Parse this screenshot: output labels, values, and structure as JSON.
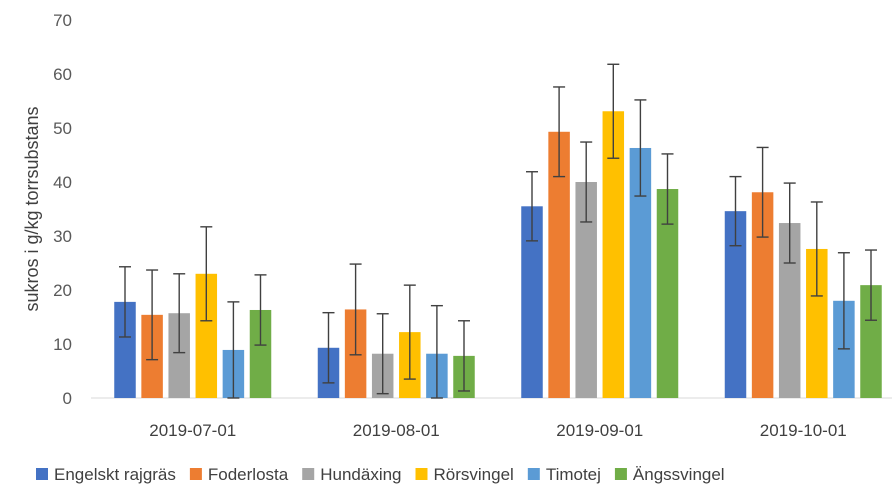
{
  "chart_data": {
    "type": "bar",
    "title": "",
    "xlabel": "",
    "ylabel": "sukros i g/kg torrsubstans",
    "ylim": [
      0,
      70
    ],
    "yticks": [
      0,
      10,
      20,
      30,
      40,
      50,
      60,
      70
    ],
    "grid": false,
    "legend_position": "bottom",
    "error_bars": true,
    "categories": [
      "2019-07-01",
      "2019-08-01",
      "2019-09-01",
      "2019-10-01"
    ],
    "series": [
      {
        "name": "Engelskt rajgräs",
        "color": "#4472C4",
        "values": [
          17.8,
          9.3,
          35.5,
          34.6
        ],
        "errors": [
          6.5,
          6.5,
          6.4,
          6.4
        ]
      },
      {
        "name": "Foderlosta",
        "color": "#ED7D31",
        "values": [
          15.4,
          16.4,
          49.3,
          38.1
        ],
        "errors": [
          8.3,
          8.4,
          8.3,
          8.3
        ]
      },
      {
        "name": "Hundäxing",
        "color": "#A5A5A5",
        "values": [
          15.7,
          8.2,
          40.0,
          32.4
        ],
        "errors": [
          7.3,
          7.4,
          7.4,
          7.4
        ]
      },
      {
        "name": "Rörsvingel",
        "color": "#FFC000",
        "values": [
          23.0,
          12.2,
          53.1,
          27.6
        ],
        "errors": [
          8.7,
          8.7,
          8.7,
          8.7
        ]
      },
      {
        "name": "Timotej",
        "color": "#5B9BD5",
        "values": [
          8.9,
          8.2,
          46.3,
          18.0
        ],
        "errors": [
          8.9,
          8.9,
          8.9,
          8.9
        ]
      },
      {
        "name": "Ängssvingel",
        "color": "#70AD47",
        "values": [
          16.3,
          7.8,
          38.7,
          20.9
        ],
        "errors": [
          6.5,
          6.5,
          6.5,
          6.5
        ]
      }
    ]
  }
}
